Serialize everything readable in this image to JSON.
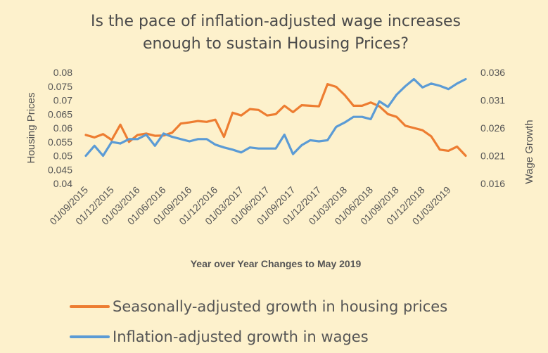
{
  "chart_data": {
    "type": "line",
    "title_line1": "Is the pace of inflation-adjusted wage increases",
    "title_line2": "enough to sustain Housing Prices?",
    "xlabel": "Year over Year Changes to May 2019",
    "ylabel_left": "Housing Prices",
    "ylabel_right": "Wage Growth",
    "ylim_left": [
      0.04,
      0.08
    ],
    "ylim_right": [
      0.016,
      0.036
    ],
    "yticks_left": [
      "0.04",
      "0.045",
      "0.05",
      "0.055",
      "0.06",
      "0.065",
      "0.07",
      "0.075",
      "0.08"
    ],
    "yticks_right": [
      "0.016",
      "0.021",
      "0.026",
      "0.031",
      "0.036"
    ],
    "grid": false,
    "legend_position": "bottom",
    "x": [
      "01/09/2015",
      "01/10/2015",
      "01/11/2015",
      "01/12/2015",
      "01/01/2016",
      "01/02/2016",
      "01/03/2016",
      "01/04/2016",
      "01/05/2016",
      "01/06/2016",
      "01/07/2016",
      "01/08/2016",
      "01/09/2016",
      "01/10/2016",
      "01/11/2016",
      "01/12/2016",
      "01/01/2017",
      "01/02/2017",
      "01/03/2017",
      "01/04/2017",
      "01/05/2017",
      "01/06/2017",
      "01/07/2017",
      "01/08/2017",
      "01/09/2017",
      "01/10/2017",
      "01/11/2017",
      "01/12/2017",
      "01/01/2018",
      "01/02/2018",
      "01/03/2018",
      "01/04/2018",
      "01/05/2018",
      "01/06/2018",
      "01/07/2018",
      "01/08/2018",
      "01/09/2018",
      "01/10/2018",
      "01/11/2018",
      "01/12/2018",
      "01/01/2019",
      "01/02/2019",
      "01/03/2019",
      "01/04/2019",
      "01/05/2019"
    ],
    "x_tick_labels": [
      "01/09/2015",
      "01/12/2015",
      "01/03/2016",
      "01/06/2016",
      "01/09/2016",
      "01/12/2016",
      "01/03/2017",
      "01/06/2017",
      "01/09/2017",
      "01/12/2017",
      "01/03/2018",
      "01/06/2018",
      "01/09/2018",
      "01/12/2018",
      "01/03/2019"
    ],
    "series": [
      {
        "name": "Seasonally-adjusted growth in housing prices",
        "axis": "left",
        "color": "#ed7d31",
        "values": [
          0.0575,
          0.0566,
          0.0578,
          0.0557,
          0.0612,
          0.055,
          0.0575,
          0.058,
          0.0572,
          0.0573,
          0.0583,
          0.0616,
          0.062,
          0.0625,
          0.0622,
          0.063,
          0.0568,
          0.0655,
          0.0645,
          0.0668,
          0.0665,
          0.0645,
          0.065,
          0.068,
          0.0657,
          0.0682,
          0.068,
          0.0678,
          0.0758,
          0.0748,
          0.0718,
          0.068,
          0.068,
          0.0692,
          0.0678,
          0.065,
          0.064,
          0.0608,
          0.06,
          0.0592,
          0.057,
          0.0522,
          0.0518,
          0.0533,
          0.05
        ]
      },
      {
        "name": "Inflation-adjusted growth in wages",
        "axis": "right",
        "color": "#5b9bd5",
        "values": [
          0.021,
          0.0228,
          0.021,
          0.0235,
          0.0232,
          0.024,
          0.024,
          0.0248,
          0.0228,
          0.025,
          0.0244,
          0.024,
          0.0236,
          0.024,
          0.024,
          0.023,
          0.0225,
          0.0221,
          0.0216,
          0.0225,
          0.0223,
          0.0223,
          0.0223,
          0.0248,
          0.0213,
          0.0229,
          0.0238,
          0.0236,
          0.0238,
          0.0262,
          0.027,
          0.028,
          0.028,
          0.0276,
          0.0308,
          0.0298,
          0.032,
          0.0335,
          0.0348,
          0.0333,
          0.034,
          0.0336,
          0.033,
          0.034,
          0.0348
        ]
      }
    ]
  }
}
